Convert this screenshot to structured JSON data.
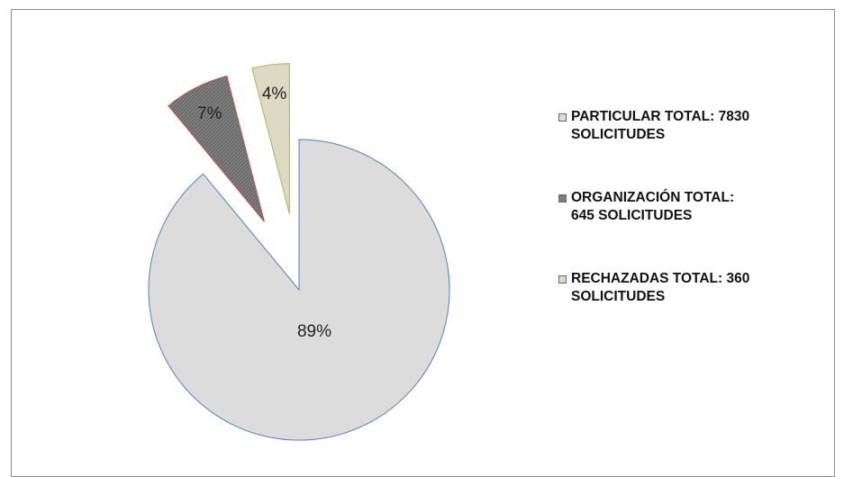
{
  "chart_data": {
    "type": "pie",
    "categories": [
      "PARTICULAR TOTAL: 7830 SOLICITUDES",
      "ORGANIZACIÓN TOTAL: 645 SOLICITUDES",
      "RECHAZADAS TOTAL: 360 SOLICITUDES"
    ],
    "values": [
      89,
      7,
      4
    ],
    "value_labels": [
      "89%",
      "7%",
      "4%"
    ],
    "colors": [
      "#dcdcdc",
      "#7f7f7f",
      "#ddd9c3"
    ],
    "legend": "right"
  }
}
